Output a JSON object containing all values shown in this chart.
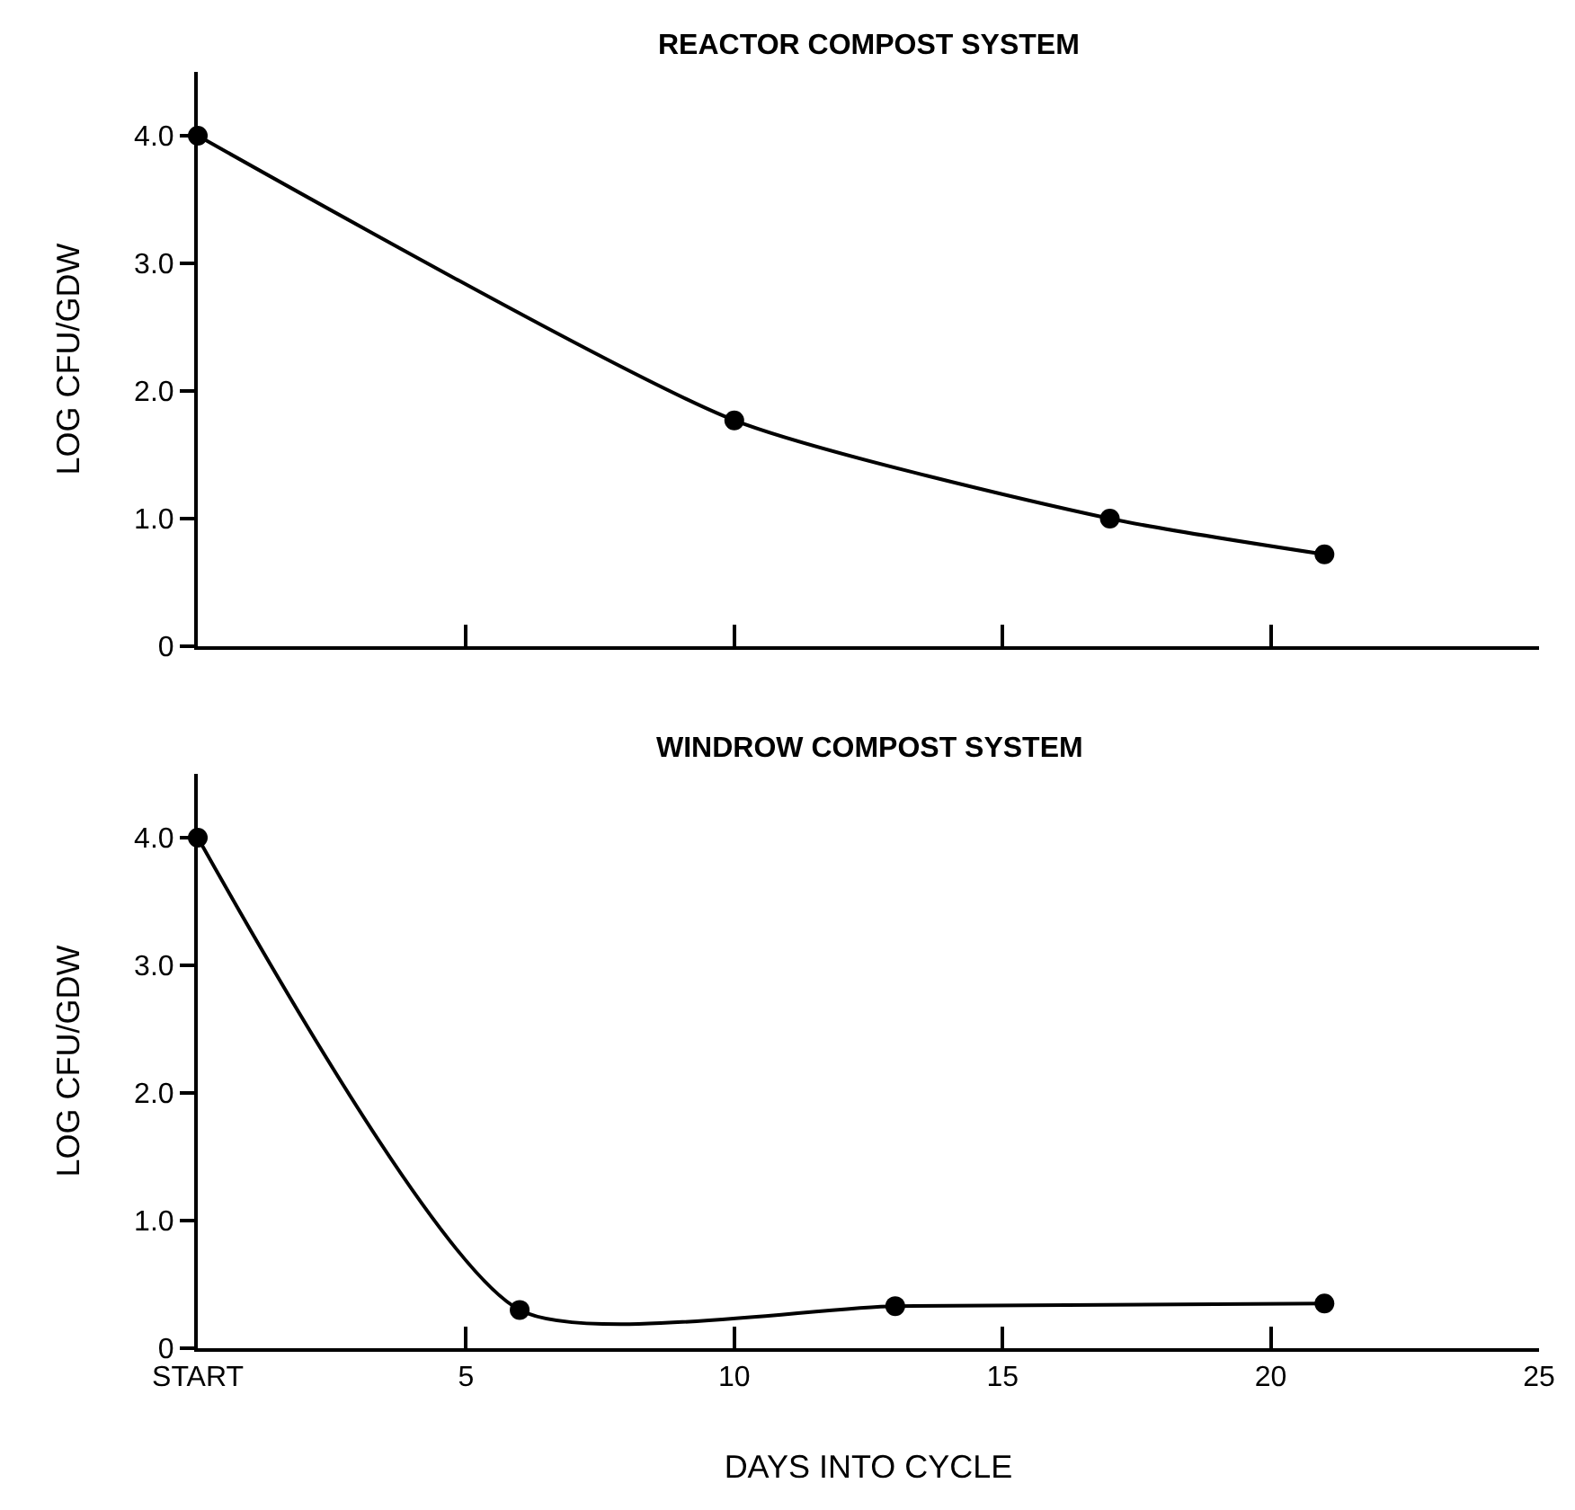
{
  "chart_data": [
    {
      "type": "line",
      "title": "REACTOR COMPOST SYSTEM",
      "ylabel": "LOG CFU/GDW",
      "x": [
        0,
        10,
        17,
        21
      ],
      "series": [
        {
          "color": "#000000",
          "values": [
            4.0,
            1.77,
            1.0,
            0.72
          ]
        }
      ],
      "xlim": [
        0,
        25
      ],
      "xticks": [
        {
          "value": 0,
          "label": null
        },
        {
          "value": 5,
          "label": null
        },
        {
          "value": 10,
          "label": null
        },
        {
          "value": 15,
          "label": null
        },
        {
          "value": 20,
          "label": null
        },
        {
          "value": 25,
          "label": null
        }
      ],
      "ylim": [
        0,
        4.5
      ],
      "yticks": [
        0,
        {
          "value": 1,
          "label": "1.0"
        },
        {
          "value": 2,
          "label": "2.0"
        },
        {
          "value": 3,
          "label": "3.0"
        },
        {
          "value": 4,
          "label": "4.0"
        }
      ],
      "tick_labels": "y",
      "marker": "circle",
      "line_style": "solid"
    },
    {
      "type": "line",
      "title": "WINDROW COMPOST SYSTEM",
      "ylabel": "LOG CFU/GDW",
      "xlabel": "DAYS INTO CYCLE",
      "x": [
        0,
        6,
        13,
        21
      ],
      "series": [
        {
          "color": "#000000",
          "values": [
            4.0,
            0.3,
            0.33,
            0.35
          ]
        }
      ],
      "xlim": [
        0,
        25
      ],
      "xticks": [
        {
          "value": 0,
          "label": "START"
        },
        5,
        10,
        15,
        20,
        25
      ],
      "ylim": [
        0,
        4.5
      ],
      "yticks": [
        0,
        {
          "value": 1,
          "label": "1.0"
        },
        {
          "value": 2,
          "label": "2.0"
        },
        {
          "value": 3,
          "label": "3.0"
        },
        {
          "value": 4,
          "label": "4.0"
        }
      ],
      "marker": "circle",
      "line_style": "solid"
    }
  ]
}
